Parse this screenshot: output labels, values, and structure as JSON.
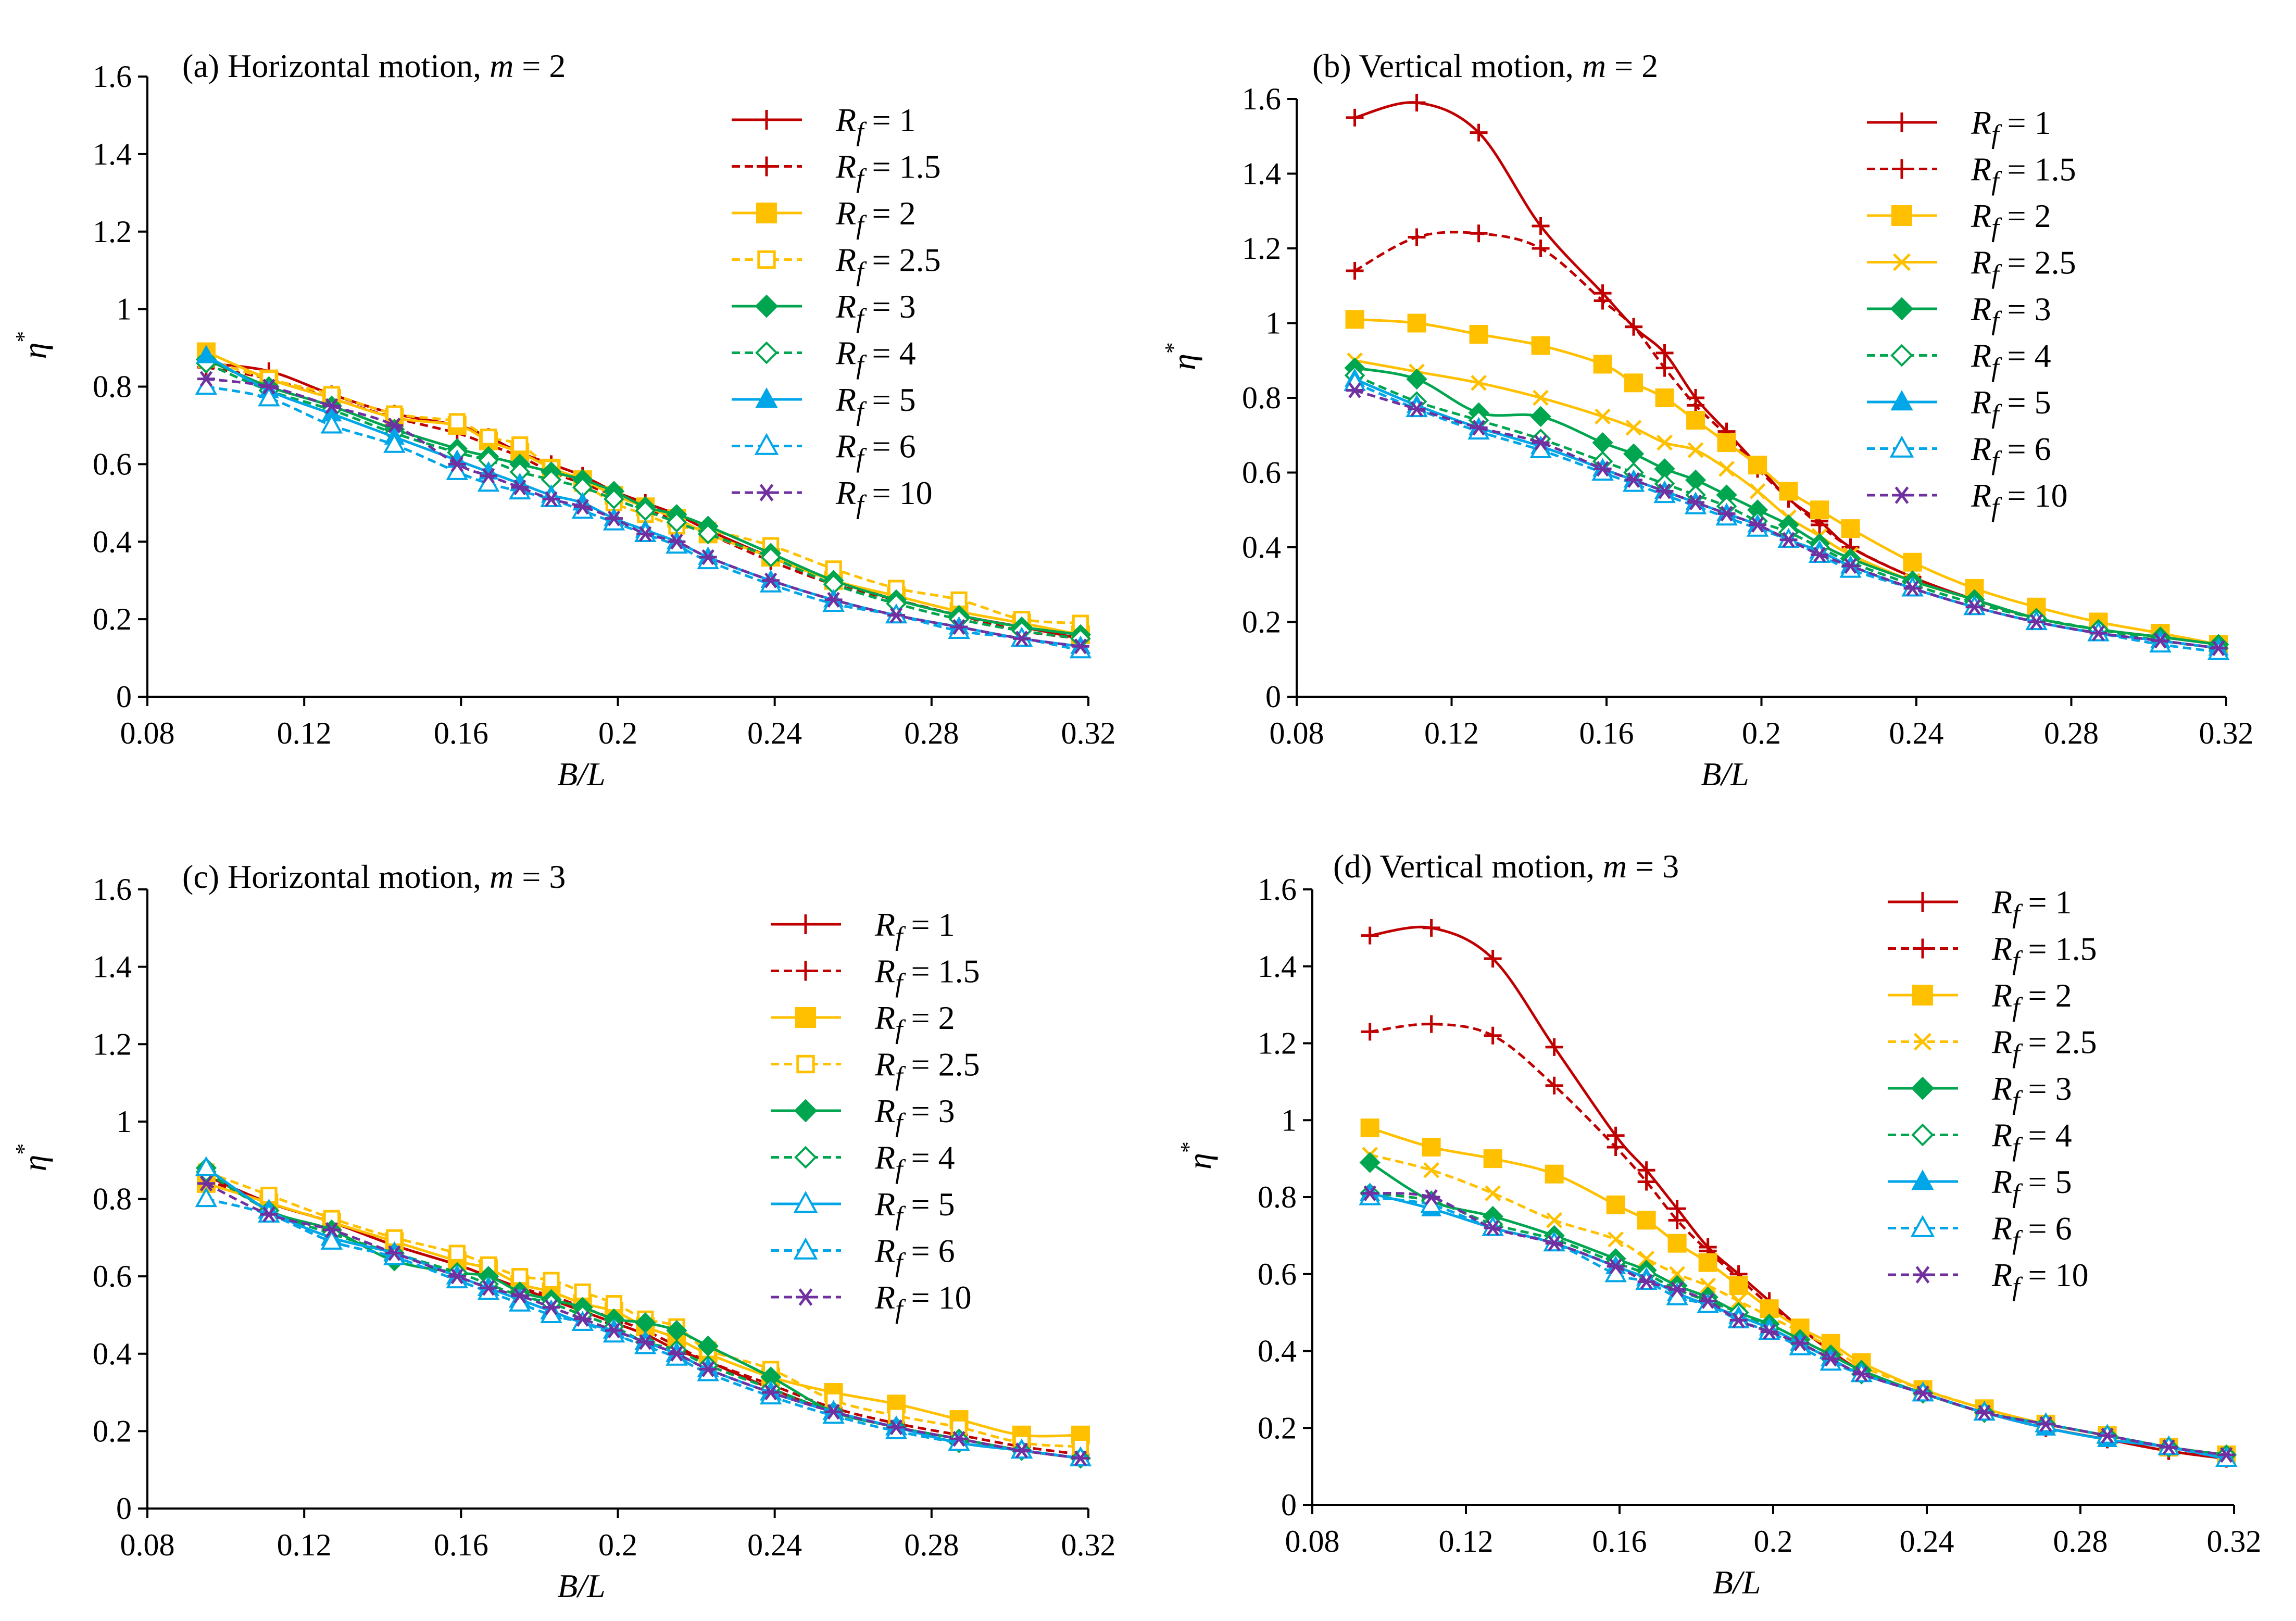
{
  "figure": {
    "x_tick_labels": [
      "0.08",
      "0.12",
      "0.16",
      "0.2",
      "0.24",
      "0.28",
      "0.32"
    ],
    "y_tick_labels": [
      "0",
      "0.2",
      "0.4",
      "0.6",
      "0.8",
      "1",
      "1.2",
      "1.4",
      "1.6"
    ]
  },
  "chart_data": [
    {
      "type": "line",
      "panel": "a",
      "title": "(a) Horizontal motion, m = 2",
      "title_prefix": "(a) Horizontal motion, ",
      "title_var": "m",
      "title_suffix": " = 2",
      "xlabel": "B/L",
      "ylabel": "η*",
      "xlim": [
        0.08,
        0.32
      ],
      "ylim": [
        0,
        1.6
      ],
      "x": [
        0.095,
        0.111,
        0.127,
        0.143,
        0.159,
        0.167,
        0.175,
        0.183,
        0.191,
        0.199,
        0.207,
        0.215,
        0.223,
        0.239,
        0.255,
        0.271,
        0.287,
        0.303,
        0.318
      ],
      "series": [
        {
          "name": "Rf = 1",
          "values": [
            0.86,
            0.84,
            0.78,
            0.73,
            0.7,
            0.67,
            0.63,
            0.6,
            0.57,
            0.53,
            0.5,
            0.47,
            0.43,
            0.36,
            0.3,
            0.25,
            0.21,
            0.18,
            0.15
          ]
        },
        {
          "name": "Rf = 1.5",
          "values": [
            0.85,
            0.82,
            0.77,
            0.72,
            0.68,
            0.65,
            0.62,
            0.58,
            0.55,
            0.52,
            0.49,
            0.45,
            0.42,
            0.35,
            0.29,
            0.25,
            0.21,
            0.17,
            0.15
          ]
        },
        {
          "name": "Rf = 2",
          "values": [
            0.89,
            0.82,
            0.77,
            0.72,
            0.7,
            0.66,
            0.63,
            0.59,
            0.56,
            0.52,
            0.49,
            0.46,
            0.42,
            0.36,
            0.3,
            0.26,
            0.22,
            0.19,
            0.16
          ]
        },
        {
          "name": "Rf = 2.5",
          "values": [
            0.87,
            0.82,
            0.78,
            0.73,
            0.71,
            0.67,
            0.65,
            0.59,
            0.55,
            0.5,
            0.47,
            0.44,
            0.43,
            0.39,
            0.33,
            0.28,
            0.25,
            0.2,
            0.19
          ]
        },
        {
          "name": "Rf = 3",
          "values": [
            0.87,
            0.8,
            0.75,
            0.69,
            0.64,
            0.62,
            0.6,
            0.58,
            0.56,
            0.53,
            0.49,
            0.47,
            0.44,
            0.37,
            0.3,
            0.25,
            0.21,
            0.18,
            0.16
          ]
        },
        {
          "name": "Rf = 4",
          "values": [
            0.86,
            0.79,
            0.74,
            0.68,
            0.63,
            0.61,
            0.58,
            0.56,
            0.54,
            0.51,
            0.48,
            0.45,
            0.42,
            0.36,
            0.29,
            0.24,
            0.2,
            0.17,
            0.15
          ]
        },
        {
          "name": "Rf = 5",
          "values": [
            0.88,
            0.79,
            0.73,
            0.67,
            0.61,
            0.58,
            0.55,
            0.52,
            0.5,
            0.46,
            0.43,
            0.4,
            0.36,
            0.3,
            0.25,
            0.21,
            0.18,
            0.15,
            0.13
          ]
        },
        {
          "name": "Rf = 6",
          "values": [
            0.8,
            0.77,
            0.7,
            0.65,
            0.58,
            0.55,
            0.53,
            0.51,
            0.48,
            0.45,
            0.42,
            0.39,
            0.35,
            0.29,
            0.24,
            0.21,
            0.17,
            0.15,
            0.12
          ]
        },
        {
          "name": "Rf = 10",
          "values": [
            0.82,
            0.8,
            0.75,
            0.7,
            0.6,
            0.57,
            0.54,
            0.51,
            0.49,
            0.46,
            0.42,
            0.4,
            0.36,
            0.3,
            0.25,
            0.21,
            0.18,
            0.15,
            0.13
          ]
        }
      ]
    },
    {
      "type": "line",
      "panel": "b",
      "title": "(b) Vertical motion, m = 2",
      "title_prefix": "(b) Vertical motion, ",
      "title_var": "m",
      "title_suffix": " = 2",
      "xlabel": "B/L",
      "ylabel": "η*",
      "xlim": [
        0.08,
        0.32
      ],
      "ylim": [
        0,
        1.6
      ],
      "x": [
        0.095,
        0.111,
        0.127,
        0.143,
        0.159,
        0.167,
        0.175,
        0.183,
        0.191,
        0.199,
        0.207,
        0.215,
        0.223,
        0.239,
        0.255,
        0.271,
        0.287,
        0.303,
        0.318
      ],
      "series": [
        {
          "name": "Rf = 1",
          "values": [
            1.55,
            1.59,
            1.51,
            1.26,
            1.08,
            0.99,
            0.92,
            0.8,
            0.71,
            0.62,
            0.53,
            0.47,
            0.4,
            0.32,
            0.26,
            0.21,
            0.18,
            0.16,
            0.14
          ]
        },
        {
          "name": "Rf = 1.5",
          "values": [
            1.14,
            1.23,
            1.24,
            1.2,
            1.06,
            0.99,
            0.88,
            0.78,
            0.7,
            0.61,
            0.53,
            0.46,
            0.4,
            0.32,
            0.26,
            0.21,
            0.18,
            0.16,
            0.14
          ]
        },
        {
          "name": "Rf = 2",
          "values": [
            1.01,
            1.0,
            0.97,
            0.94,
            0.89,
            0.84,
            0.8,
            0.74,
            0.68,
            0.62,
            0.55,
            0.5,
            0.45,
            0.36,
            0.29,
            0.24,
            0.2,
            0.17,
            0.14
          ]
        },
        {
          "name": "Rf = 2.5",
          "values": [
            0.9,
            0.87,
            0.84,
            0.8,
            0.75,
            0.72,
            0.68,
            0.66,
            0.61,
            0.55,
            0.48,
            0.43,
            0.38,
            0.31,
            0.26,
            0.21,
            0.18,
            0.16,
            0.14
          ]
        },
        {
          "name": "Rf = 3",
          "values": [
            0.88,
            0.85,
            0.76,
            0.75,
            0.68,
            0.65,
            0.61,
            0.58,
            0.54,
            0.5,
            0.46,
            0.41,
            0.37,
            0.31,
            0.26,
            0.21,
            0.18,
            0.16,
            0.14
          ]
        },
        {
          "name": "Rf = 4",
          "values": [
            0.86,
            0.79,
            0.74,
            0.69,
            0.63,
            0.6,
            0.57,
            0.54,
            0.51,
            0.47,
            0.44,
            0.4,
            0.36,
            0.3,
            0.25,
            0.21,
            0.18,
            0.15,
            0.13
          ]
        },
        {
          "name": "Rf = 5",
          "values": [
            0.85,
            0.78,
            0.72,
            0.67,
            0.61,
            0.58,
            0.55,
            0.52,
            0.49,
            0.46,
            0.42,
            0.39,
            0.35,
            0.29,
            0.24,
            0.2,
            0.17,
            0.15,
            0.13
          ]
        },
        {
          "name": "Rf = 6",
          "values": [
            0.84,
            0.77,
            0.71,
            0.66,
            0.6,
            0.57,
            0.54,
            0.51,
            0.48,
            0.45,
            0.42,
            0.38,
            0.34,
            0.29,
            0.24,
            0.2,
            0.17,
            0.14,
            0.12
          ]
        },
        {
          "name": "Rf = 10",
          "values": [
            0.82,
            0.77,
            0.72,
            0.68,
            0.61,
            0.58,
            0.55,
            0.52,
            0.49,
            0.46,
            0.42,
            0.38,
            0.35,
            0.29,
            0.24,
            0.2,
            0.17,
            0.15,
            0.13
          ]
        }
      ]
    },
    {
      "type": "line",
      "panel": "c",
      "title": "(c) Horizontal motion, m = 3",
      "title_prefix": "(c) Horizontal motion, ",
      "title_var": "m",
      "title_suffix": " = 3",
      "xlabel": "B/L",
      "ylabel": "η*",
      "xlim": [
        0.08,
        0.32
      ],
      "ylim": [
        0,
        1.6
      ],
      "x": [
        0.095,
        0.111,
        0.127,
        0.143,
        0.159,
        0.167,
        0.175,
        0.183,
        0.191,
        0.199,
        0.207,
        0.215,
        0.223,
        0.239,
        0.255,
        0.271,
        0.287,
        0.303,
        0.318
      ],
      "series": [
        {
          "name": "Rf = 1",
          "values": [
            0.86,
            0.79,
            0.74,
            0.68,
            0.63,
            0.6,
            0.57,
            0.54,
            0.51,
            0.48,
            0.45,
            0.41,
            0.38,
            0.31,
            0.25,
            0.21,
            0.18,
            0.15,
            0.13
          ]
        },
        {
          "name": "Rf = 1.5",
          "values": [
            0.85,
            0.79,
            0.74,
            0.68,
            0.63,
            0.6,
            0.57,
            0.55,
            0.52,
            0.49,
            0.46,
            0.42,
            0.38,
            0.32,
            0.26,
            0.22,
            0.19,
            0.16,
            0.14
          ]
        },
        {
          "name": "Rf = 2",
          "values": [
            0.84,
            0.79,
            0.74,
            0.69,
            0.64,
            0.62,
            0.58,
            0.56,
            0.53,
            0.51,
            0.47,
            0.44,
            0.4,
            0.34,
            0.3,
            0.27,
            0.23,
            0.19,
            0.19
          ]
        },
        {
          "name": "Rf = 2.5",
          "values": [
            0.87,
            0.81,
            0.75,
            0.7,
            0.66,
            0.63,
            0.6,
            0.59,
            0.56,
            0.53,
            0.49,
            0.47,
            0.41,
            0.36,
            0.28,
            0.24,
            0.21,
            0.17,
            0.16
          ]
        },
        {
          "name": "Rf = 3",
          "values": [
            0.88,
            0.77,
            0.72,
            0.64,
            0.61,
            0.6,
            0.56,
            0.54,
            0.52,
            0.49,
            0.48,
            0.46,
            0.42,
            0.34,
            0.25,
            0.21,
            0.17,
            0.15,
            0.13
          ]
        },
        {
          "name": "Rf = 4",
          "values": [
            0.87,
            0.77,
            0.71,
            0.66,
            0.61,
            0.58,
            0.55,
            0.53,
            0.5,
            0.47,
            0.43,
            0.41,
            0.37,
            0.31,
            0.25,
            0.21,
            0.18,
            0.15,
            0.13
          ]
        },
        {
          "name": "Rf = 5",
          "values": [
            0.88,
            0.77,
            0.7,
            0.66,
            0.6,
            0.57,
            0.54,
            0.51,
            0.48,
            0.46,
            0.43,
            0.4,
            0.36,
            0.3,
            0.25,
            0.21,
            0.17,
            0.15,
            0.13
          ]
        },
        {
          "name": "Rf = 6",
          "values": [
            0.8,
            0.76,
            0.69,
            0.65,
            0.59,
            0.56,
            0.53,
            0.5,
            0.48,
            0.45,
            0.42,
            0.39,
            0.35,
            0.29,
            0.24,
            0.2,
            0.17,
            0.15,
            0.13
          ]
        },
        {
          "name": "Rf = 10",
          "values": [
            0.84,
            0.76,
            0.72,
            0.66,
            0.6,
            0.57,
            0.55,
            0.52,
            0.49,
            0.46,
            0.43,
            0.4,
            0.36,
            0.3,
            0.25,
            0.21,
            0.18,
            0.15,
            0.13
          ]
        }
      ]
    },
    {
      "type": "line",
      "panel": "d",
      "title": "(d) Vertical motion, m = 3",
      "title_prefix": "(d) Vertical motion, ",
      "title_var": "m",
      "title_suffix": " = 3",
      "xlabel": "B/L",
      "ylabel": "η*",
      "xlim": [
        0.08,
        0.32
      ],
      "ylim": [
        0,
        1.6
      ],
      "x": [
        0.095,
        0.111,
        0.127,
        0.143,
        0.159,
        0.167,
        0.175,
        0.183,
        0.191,
        0.199,
        0.207,
        0.215,
        0.223,
        0.239,
        0.255,
        0.271,
        0.287,
        0.303,
        0.318
      ],
      "series": [
        {
          "name": "Rf = 1",
          "values": [
            1.48,
            1.5,
            1.42,
            1.19,
            0.96,
            0.87,
            0.77,
            0.67,
            0.6,
            0.53,
            0.46,
            0.4,
            0.35,
            0.29,
            0.24,
            0.2,
            0.17,
            0.14,
            0.12
          ]
        },
        {
          "name": "Rf = 1.5",
          "values": [
            1.23,
            1.25,
            1.22,
            1.09,
            0.93,
            0.84,
            0.74,
            0.66,
            0.59,
            0.52,
            0.46,
            0.4,
            0.35,
            0.29,
            0.24,
            0.2,
            0.17,
            0.14,
            0.12
          ]
        },
        {
          "name": "Rf = 2",
          "values": [
            0.98,
            0.93,
            0.9,
            0.86,
            0.78,
            0.74,
            0.68,
            0.63,
            0.57,
            0.51,
            0.46,
            0.42,
            0.37,
            0.3,
            0.25,
            0.21,
            0.18,
            0.15,
            0.13
          ]
        },
        {
          "name": "Rf = 2.5",
          "values": [
            0.91,
            0.87,
            0.81,
            0.74,
            0.69,
            0.64,
            0.6,
            0.57,
            0.53,
            0.49,
            0.45,
            0.41,
            0.36,
            0.3,
            0.25,
            0.21,
            0.18,
            0.15,
            0.13
          ]
        },
        {
          "name": "Rf = 3",
          "values": [
            0.89,
            0.79,
            0.75,
            0.7,
            0.64,
            0.61,
            0.57,
            0.54,
            0.5,
            0.47,
            0.43,
            0.39,
            0.35,
            0.29,
            0.24,
            0.21,
            0.18,
            0.15,
            0.13
          ]
        },
        {
          "name": "Rf = 4",
          "values": [
            0.81,
            0.79,
            0.73,
            0.69,
            0.63,
            0.6,
            0.56,
            0.53,
            0.5,
            0.46,
            0.42,
            0.38,
            0.34,
            0.29,
            0.24,
            0.21,
            0.18,
            0.15,
            0.13
          ]
        },
        {
          "name": "Rf = 5",
          "values": [
            0.81,
            0.77,
            0.72,
            0.68,
            0.62,
            0.59,
            0.55,
            0.52,
            0.49,
            0.46,
            0.42,
            0.38,
            0.34,
            0.29,
            0.24,
            0.2,
            0.17,
            0.15,
            0.12
          ]
        },
        {
          "name": "Rf = 6",
          "values": [
            0.8,
            0.78,
            0.72,
            0.68,
            0.6,
            0.58,
            0.54,
            0.52,
            0.48,
            0.45,
            0.41,
            0.37,
            0.34,
            0.29,
            0.24,
            0.21,
            0.18,
            0.15,
            0.12
          ]
        },
        {
          "name": "Rf = 10",
          "values": [
            0.81,
            0.8,
            0.72,
            0.68,
            0.62,
            0.58,
            0.56,
            0.53,
            0.48,
            0.45,
            0.42,
            0.38,
            0.34,
            0.29,
            0.24,
            0.21,
            0.18,
            0.15,
            0.13
          ]
        }
      ]
    }
  ],
  "legend_entries": [
    {
      "var": "R",
      "sub": "f",
      "rest": " = 1"
    },
    {
      "var": "R",
      "sub": "f",
      "rest": " = 1.5"
    },
    {
      "var": "R",
      "sub": "f",
      "rest": " = 2"
    },
    {
      "var": "R",
      "sub": "f",
      "rest": " = 2.5"
    },
    {
      "var": "R",
      "sub": "f",
      "rest": " = 3"
    },
    {
      "var": "R",
      "sub": "f",
      "rest": " = 4"
    },
    {
      "var": "R",
      "sub": "f",
      "rest": " = 5"
    },
    {
      "var": "R",
      "sub": "f",
      "rest": " = 6"
    },
    {
      "var": "R",
      "sub": "f",
      "rest": " = 10"
    }
  ],
  "series_styles": [
    {
      "color": "#C00000",
      "dash": "solid",
      "marker": "plus"
    },
    {
      "color": "#C00000",
      "dash": "dashed",
      "marker": "plus"
    },
    {
      "color": "#FFC000",
      "dash": "solid",
      "marker": "square-filled"
    },
    {
      "color": "#FFC000",
      "dash": "dashed",
      "marker": "square-open"
    },
    {
      "color": "#00A64F",
      "dash": "solid",
      "marker": "diamond-filled"
    },
    {
      "color": "#00A64F",
      "dash": "dashed",
      "marker": "diamond-open"
    },
    {
      "color": "#00A6E8",
      "dash": "solid",
      "marker": "triangle-filled"
    },
    {
      "color": "#00A6E8",
      "dash": "dashed",
      "marker": "triangle-open"
    },
    {
      "color": "#7030A0",
      "dash": "dashed",
      "marker": "asterisk"
    }
  ],
  "panel_b_overrides": {
    "3": {
      "dash": "solid",
      "marker": "cross"
    }
  },
  "panel_c_overrides": {
    "6": {
      "marker": "triangle-open"
    }
  },
  "panel_d_overrides": {
    "3": {
      "marker": "cross"
    }
  }
}
